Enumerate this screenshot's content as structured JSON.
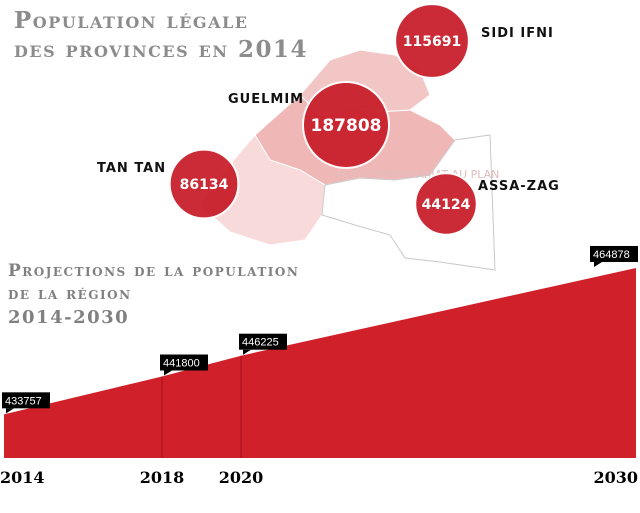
{
  "titles": {
    "map_title_line1": "Population légale",
    "map_title_line2": "des provinces en 2014",
    "chart_title_line1": "Projections de la population",
    "chart_title_line2": "de la région",
    "chart_title_line3": "2014-2030"
  },
  "watermark": "HAUT-COMMISSARIAT AU PLAN",
  "colors": {
    "area_fill": "#d0202a",
    "bubble_fill": "#c8202c",
    "map_light": "#f6d3d3",
    "map_mid": "#f0b5b5",
    "label_bg": "#000000"
  },
  "provinces": [
    {
      "name": "SIDI IFNI",
      "population": "115691"
    },
    {
      "name": "GUELMIM",
      "population": "187808"
    },
    {
      "name": "TAN TAN",
      "population": "86134"
    },
    {
      "name": "ASSA-ZAG",
      "population": "44124"
    }
  ],
  "chart_data": {
    "type": "area",
    "title": "Projections de la population de la région 2014-2030",
    "x": [
      2014,
      2018,
      2020,
      2030
    ],
    "values": [
      433757,
      441800,
      446225,
      464878
    ],
    "value_labels": [
      "433757",
      "441800",
      "446225",
      "464878"
    ],
    "tick_labels": [
      "2014",
      "2018",
      "2020",
      "2030"
    ],
    "grid": false,
    "legend": "none"
  }
}
